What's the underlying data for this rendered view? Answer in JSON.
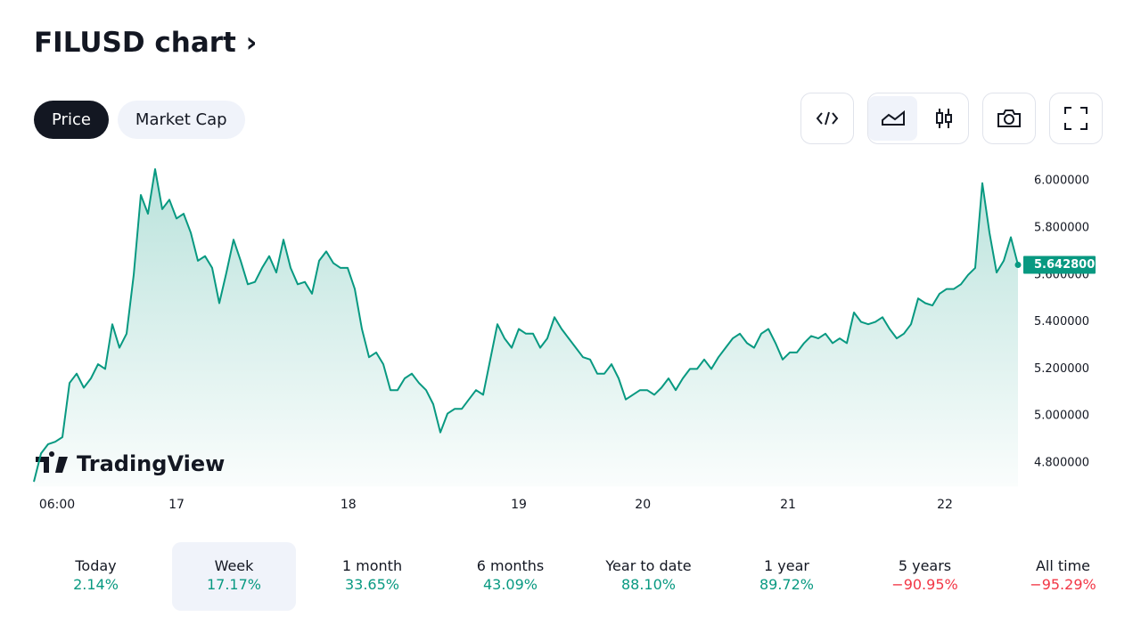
{
  "header": {
    "title": "FILUSD chart"
  },
  "tabs": [
    "Price",
    "Market Cap"
  ],
  "selected_tab": 0,
  "chart_data": {
    "type": "line",
    "color": "#089981",
    "values": [
      4.72,
      4.84,
      4.88,
      4.89,
      4.91,
      5.14,
      5.18,
      5.12,
      5.16,
      5.22,
      5.2,
      5.39,
      5.29,
      5.35,
      5.6,
      5.94,
      5.86,
      6.05,
      5.88,
      5.92,
      5.84,
      5.86,
      5.78,
      5.66,
      5.68,
      5.63,
      5.48,
      5.61,
      5.75,
      5.66,
      5.56,
      5.57,
      5.63,
      5.68,
      5.61,
      5.75,
      5.63,
      5.56,
      5.57,
      5.52,
      5.66,
      5.7,
      5.65,
      5.63,
      5.63,
      5.54,
      5.37,
      5.25,
      5.27,
      5.22,
      5.11,
      5.11,
      5.16,
      5.18,
      5.14,
      5.11,
      5.05,
      4.93,
      5.01,
      5.03,
      5.03,
      5.07,
      5.11,
      5.09,
      5.24,
      5.39,
      5.33,
      5.29,
      5.37,
      5.35,
      5.35,
      5.29,
      5.33,
      5.42,
      5.37,
      5.33,
      5.29,
      5.25,
      5.24,
      5.18,
      5.18,
      5.22,
      5.16,
      5.07,
      5.09,
      5.11,
      5.11,
      5.09,
      5.12,
      5.16,
      5.11,
      5.16,
      5.2,
      5.2,
      5.24,
      5.2,
      5.25,
      5.29,
      5.33,
      5.35,
      5.31,
      5.29,
      5.35,
      5.37,
      5.31,
      5.24,
      5.27,
      5.27,
      5.31,
      5.34,
      5.33,
      5.35,
      5.31,
      5.33,
      5.31,
      5.44,
      5.4,
      5.39,
      5.4,
      5.42,
      5.37,
      5.33,
      5.35,
      5.39,
      5.5,
      5.48,
      5.47,
      5.52,
      5.54,
      5.54,
      5.56,
      5.6,
      5.63,
      5.99,
      5.78,
      5.61,
      5.66,
      5.76,
      5.6428
    ],
    "last_value_label": "5.642800",
    "xlim": [
      0,
      138
    ],
    "xticks": [
      {
        "value": 3.25,
        "label": "06:00"
      },
      {
        "value": 20,
        "label": "17"
      },
      {
        "value": 44.1,
        "label": "18"
      },
      {
        "value": 68,
        "label": "19"
      },
      {
        "value": 85.4,
        "label": "20"
      },
      {
        "value": 105.75,
        "label": "21"
      },
      {
        "value": 127.75,
        "label": "22"
      }
    ],
    "ylim": [
      4.7,
      6.07
    ],
    "yticks": [
      {
        "value": 4.8,
        "label": "4.800000"
      },
      {
        "value": 5.0,
        "label": "5.000000"
      },
      {
        "value": 5.2,
        "label": "5.200000"
      },
      {
        "value": 5.4,
        "label": "5.400000"
      },
      {
        "value": 5.6,
        "label": "5.600000"
      },
      {
        "value": 5.8,
        "label": "5.800000"
      },
      {
        "value": 6.0,
        "label": "6.000000"
      }
    ],
    "watermark": "TradingView"
  },
  "periods": [
    {
      "label": "Today",
      "change": "2.14%"
    },
    {
      "label": "Week",
      "change": "17.17%"
    },
    {
      "label": "1 month",
      "change": "33.65%"
    },
    {
      "label": "6 months",
      "change": "43.09%"
    },
    {
      "label": "Year to date",
      "change": "88.10%"
    },
    {
      "label": "1 year",
      "change": "89.72%"
    },
    {
      "label": "5 years",
      "change": "−90.95%"
    },
    {
      "label": "All time",
      "change": "−95.29%"
    }
  ],
  "selected_period": 1
}
